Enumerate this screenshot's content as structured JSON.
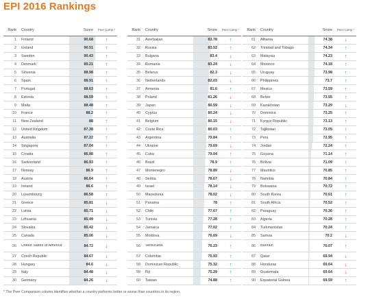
{
  "title": "EPI 2016 Rankings",
  "colors": {
    "title": "#e07b22",
    "up": "#2f9a6a",
    "down": "#cc3d3d",
    "score_fill": "#e3e6e8"
  },
  "headers": {
    "rank": "Rank",
    "country": "Country",
    "score": "Score",
    "peer": "Peer Comp.*"
  },
  "arrow_glyphs": {
    "up": "↑",
    "down": "↓"
  },
  "columns": [
    {
      "rows": [
        {
          "rank": "1",
          "country": "Finland",
          "score": "90.68",
          "peer": "up"
        },
        {
          "rank": "2",
          "country": "Iceland",
          "score": "90.51",
          "peer": "up"
        },
        {
          "rank": "3",
          "country": "Sweden",
          "score": "90.43",
          "peer": "up"
        },
        {
          "rank": "4",
          "country": "Denmark",
          "score": "89.21",
          "peer": "up"
        },
        {
          "rank": "5",
          "country": "Slovenia",
          "score": "88.98",
          "peer": "up"
        },
        {
          "rank": "6",
          "country": "Spain",
          "score": "88.91",
          "peer": "up"
        },
        {
          "rank": "7",
          "country": "Portugal",
          "score": "88.63",
          "peer": "up"
        },
        {
          "rank": "8",
          "country": "Estonia",
          "score": "88.59",
          "peer": "up"
        },
        {
          "rank": "9",
          "country": "Malta",
          "score": "88.48",
          "peer": "up"
        },
        {
          "rank": "10",
          "country": "France",
          "score": "88.2",
          "peer": "up"
        },
        {
          "rank": "11",
          "country": "New Zealand",
          "score": "88",
          "peer": "up"
        },
        {
          "rank": "12",
          "country": "United Kingdom",
          "score": "87.38",
          "peer": "up"
        },
        {
          "rank": "13",
          "country": "Australia",
          "score": "87.22",
          "peer": "up"
        },
        {
          "rank": "14",
          "country": "Singapore",
          "score": "87.04",
          "peer": "up"
        },
        {
          "rank": "15",
          "country": "Croatia",
          "score": "86.98",
          "peer": "up"
        },
        {
          "rank": "16",
          "country": "Switzerland",
          "score": "86.93",
          "peer": "up"
        },
        {
          "rank": "17",
          "country": "Norway",
          "score": "86.9",
          "peer": "up"
        },
        {
          "rank": "18",
          "country": "Austria",
          "score": "86.64",
          "peer": "up"
        },
        {
          "rank": "19",
          "country": "Ireland",
          "score": "86.6",
          "peer": "up"
        },
        {
          "rank": "20",
          "country": "Luxembourg",
          "score": "86.58",
          "peer": "up"
        },
        {
          "rank": "21",
          "country": "Greece",
          "score": "85.81",
          "peer": "down"
        },
        {
          "rank": "22",
          "country": "Latvia",
          "score": "85.71",
          "peer": "down"
        },
        {
          "rank": "23",
          "country": "Lithuania",
          "score": "85.49",
          "peer": "down"
        },
        {
          "rank": "24",
          "country": "Slovakia",
          "score": "85.42",
          "peer": "down"
        },
        {
          "rank": "25",
          "country": "Canada",
          "score": "85.06",
          "peer": "down"
        },
        {
          "rank": "26",
          "country": "United States of America",
          "score": "84.72",
          "peer": "down",
          "tall": true
        },
        {
          "rank": "27",
          "country": "Czech Republic",
          "score": "84.67",
          "peer": "down"
        },
        {
          "rank": "28",
          "country": "Hungary",
          "score": "84.6",
          "peer": "down"
        },
        {
          "rank": "29",
          "country": "Italy",
          "score": "84.48",
          "peer": "down"
        },
        {
          "rank": "30",
          "country": "Germany",
          "score": "84.26",
          "peer": "down"
        }
      ]
    },
    {
      "rows": [
        {
          "rank": "31",
          "country": "Azerbaijan",
          "score": "83.78",
          "peer": "up"
        },
        {
          "rank": "32",
          "country": "Russia",
          "score": "83.52",
          "peer": "up"
        },
        {
          "rank": "33",
          "country": "Bulgaria",
          "score": "83.4",
          "peer": "down"
        },
        {
          "rank": "34",
          "country": "Romania",
          "score": "83.24",
          "peer": "down"
        },
        {
          "rank": "35",
          "country": "Belarus",
          "score": "82.3",
          "peer": "down"
        },
        {
          "rank": "36",
          "country": "Netherlands",
          "score": "82.03",
          "peer": "down"
        },
        {
          "rank": "37",
          "country": "Armenia",
          "score": "81.6",
          "peer": "up"
        },
        {
          "rank": "38",
          "country": "Poland",
          "score": "81.26",
          "peer": "down"
        },
        {
          "rank": "39",
          "country": "Japan",
          "score": "80.59",
          "peer": "down"
        },
        {
          "rank": "40",
          "country": "Cyprus",
          "score": "80.24",
          "peer": "down"
        },
        {
          "rank": "41",
          "country": "Belgium",
          "score": "80.15",
          "peer": "down"
        },
        {
          "rank": "42",
          "country": "Costa Rica",
          "score": "80.03",
          "peer": "up"
        },
        {
          "rank": "43",
          "country": "Argentina",
          "score": "79.84",
          "peer": "up"
        },
        {
          "rank": "44",
          "country": "Ukraine",
          "score": "79.69",
          "peer": "down"
        },
        {
          "rank": "45",
          "country": "Cuba",
          "score": "79.04",
          "peer": "up"
        },
        {
          "rank": "46",
          "country": "Brazil",
          "score": "78.9",
          "peer": "up"
        },
        {
          "rank": "47",
          "country": "Montenegro",
          "score": "78.89",
          "peer": "down"
        },
        {
          "rank": "48",
          "country": "Serbia",
          "score": "78.67",
          "peer": "down"
        },
        {
          "rank": "49",
          "country": "Israel",
          "score": "78.14",
          "peer": "down"
        },
        {
          "rank": "50",
          "country": "Macedonia",
          "score": "78.02",
          "peer": "down"
        },
        {
          "rank": "51",
          "country": "Panama",
          "score": "78",
          "peer": "up"
        },
        {
          "rank": "52",
          "country": "Chile",
          "score": "77.67",
          "peer": "up"
        },
        {
          "rank": "53",
          "country": "Tunisia",
          "score": "77.28",
          "peer": "up"
        },
        {
          "rank": "54",
          "country": "Jamaica",
          "score": "77.02",
          "peer": "up"
        },
        {
          "rank": "55",
          "country": "Moldova",
          "score": "76.69",
          "peer": "down"
        },
        {
          "rank": "56",
          "country": "Venezuela",
          "score": "76.23",
          "peer": "up",
          "tall": true
        },
        {
          "rank": "57",
          "country": "Colombia",
          "score": "75.93",
          "peer": "up"
        },
        {
          "rank": "58",
          "country": "Dominican Republic",
          "score": "75.32",
          "peer": "up"
        },
        {
          "rank": "59",
          "country": "Fiji",
          "score": "75.29",
          "peer": "up"
        },
        {
          "rank": "60",
          "country": "Taiwan",
          "score": "74.88",
          "peer": "up"
        }
      ]
    },
    {
      "rows": [
        {
          "rank": "61",
          "country": "Albania",
          "score": "74.38",
          "peer": "down"
        },
        {
          "rank": "62",
          "country": "Trinidad and Tobago",
          "score": "74.34",
          "peer": "up"
        },
        {
          "rank": "63",
          "country": "Malaysia",
          "score": "74.23",
          "peer": "up"
        },
        {
          "rank": "64",
          "country": "Morocco",
          "score": "74.18",
          "peer": "up"
        },
        {
          "rank": "65",
          "country": "Uruguay",
          "score": "73.98",
          "peer": "up"
        },
        {
          "rank": "66",
          "country": "Philippines",
          "score": "73.7",
          "peer": "up"
        },
        {
          "rank": "67",
          "country": "Mexico",
          "score": "73.59",
          "peer": "up"
        },
        {
          "rank": "68",
          "country": "Belize",
          "score": "73.55",
          "peer": "up"
        },
        {
          "rank": "69",
          "country": "Kazakhstan",
          "score": "73.29",
          "peer": "down"
        },
        {
          "rank": "70",
          "country": "Dominica",
          "score": "73.25",
          "peer": "up"
        },
        {
          "rank": "71",
          "country": "Kyrgyz Republic",
          "score": "73.13",
          "peer": "up"
        },
        {
          "rank": "72",
          "country": "Tajikistan",
          "score": "73.05",
          "peer": "up"
        },
        {
          "rank": "73",
          "country": "Peru",
          "score": "72.95",
          "peer": "up"
        },
        {
          "rank": "74",
          "country": "Jordan",
          "score": "72.24",
          "peer": "up"
        },
        {
          "rank": "75",
          "country": "Guyana",
          "score": "71.14",
          "peer": "up"
        },
        {
          "rank": "76",
          "country": "Bolivia",
          "score": "71.09",
          "peer": "up"
        },
        {
          "rank": "77",
          "country": "Mauritius",
          "score": "70.85",
          "peer": "up"
        },
        {
          "rank": "78",
          "country": "Namibia",
          "score": "70.84",
          "peer": "up"
        },
        {
          "rank": "79",
          "country": "Botswana",
          "score": "70.72",
          "peer": "up"
        },
        {
          "rank": "80",
          "country": "South Korea",
          "score": "70.61",
          "peer": "up"
        },
        {
          "rank": "81",
          "country": "South Africa",
          "score": "70.52",
          "peer": "up"
        },
        {
          "rank": "82",
          "country": "Paraguay",
          "score": "70.36",
          "peer": "up"
        },
        {
          "rank": "83",
          "country": "Algeria",
          "score": "70.28",
          "peer": "up"
        },
        {
          "rank": "84",
          "country": "Turkmenistan",
          "score": "70.24",
          "peer": "up"
        },
        {
          "rank": "85",
          "country": "Samoa",
          "score": "70.2",
          "peer": "down"
        },
        {
          "rank": "86",
          "country": "Bahrain",
          "score": "70.07",
          "peer": "up",
          "tall": true
        },
        {
          "rank": "87",
          "country": "Qatar",
          "score": "69.94",
          "peer": "down"
        },
        {
          "rank": "88",
          "country": "Honduras",
          "score": "69.64",
          "peer": "down"
        },
        {
          "rank": "89",
          "country": "Guatemala",
          "score": "69.64",
          "peer": "down"
        },
        {
          "rank": "90",
          "country": "Equatorial Guinea",
          "score": "69.59",
          "peer": "up"
        }
      ]
    }
  ],
  "footnote": "* The Peer Comparison column identifies whether a country performs better or worse than countries in its region."
}
